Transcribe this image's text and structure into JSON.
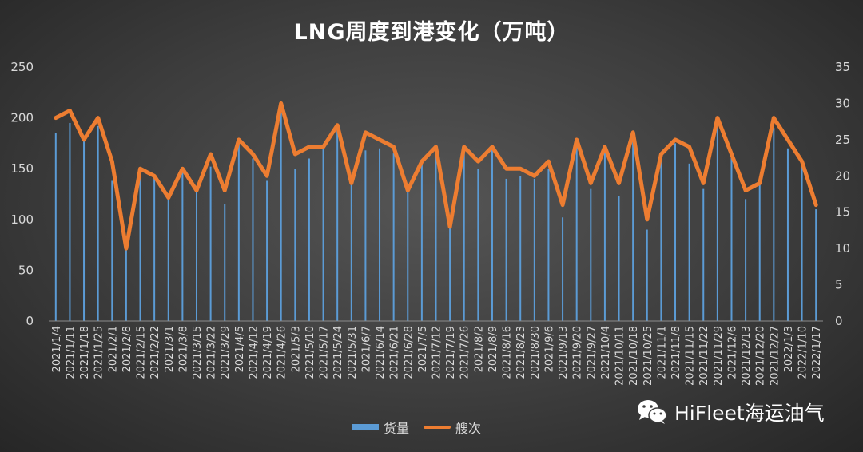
{
  "chart_data": {
    "type": "bar+line",
    "title": "LNG周度到港变化（万吨）",
    "categories": [
      "2021/1/4",
      "2021/1/11",
      "2021/1/18",
      "2021/1/25",
      "2021/2/1",
      "2021/2/8",
      "2021/2/15",
      "2021/2/22",
      "2021/3/1",
      "2021/3/8",
      "2021/3/15",
      "2021/3/22",
      "2021/3/29",
      "2021/4/5",
      "2021/4/12",
      "2021/4/19",
      "2021/4/26",
      "2021/5/3",
      "2021/5/10",
      "2021/5/17",
      "2021/5/24",
      "2021/5/31",
      "2021/6/7",
      "2021/6/14",
      "2021/6/21",
      "2021/6/28",
      "2021/7/5",
      "2021/7/12",
      "2021/7/19",
      "2021/7/26",
      "2021/8/2",
      "2021/8/9",
      "2021/8/16",
      "2021/8/23",
      "2021/8/30",
      "2021/9/6",
      "2021/9/13",
      "2021/9/20",
      "2021/9/27",
      "2021/10/4",
      "2021/10/11",
      "2021/10/18",
      "2021/10/25",
      "2021/11/1",
      "2021/11/8",
      "2021/11/15",
      "2021/11/22",
      "2021/11/29",
      "2021/12/6",
      "2021/12/13",
      "2021/12/20",
      "2021/12/27",
      "2022/1/3",
      "2022/1/10",
      "2022/1/17"
    ],
    "series": [
      {
        "name": "货量",
        "type": "bar",
        "axis": "left",
        "color": "#5b9bd5",
        "values": [
          185,
          195,
          178,
          192,
          138,
          70,
          150,
          144,
          122,
          148,
          127,
          152,
          115,
          175,
          160,
          138,
          205,
          150,
          160,
          170,
          188,
          135,
          168,
          170,
          165,
          130,
          155,
          170,
          93,
          168,
          150,
          170,
          140,
          143,
          140,
          150,
          102,
          175,
          130,
          170,
          123,
          185,
          90,
          160,
          175,
          155,
          130,
          195,
          165,
          120,
          135,
          190,
          170,
          155,
          110
        ]
      },
      {
        "name": "艘次",
        "type": "line",
        "axis": "right",
        "color": "#ed7d31",
        "values": [
          28,
          29,
          25,
          28,
          22,
          10,
          21,
          20,
          17,
          21,
          18,
          23,
          18,
          25,
          23,
          20,
          30,
          23,
          24,
          24,
          27,
          19,
          26,
          25,
          24,
          18,
          22,
          24,
          13,
          24,
          22,
          24,
          21,
          21,
          20,
          22,
          16,
          25,
          19,
          24,
          19,
          26,
          14,
          23,
          25,
          24,
          19,
          28,
          23,
          18,
          19,
          28,
          25,
          22,
          16
        ]
      }
    ],
    "y_left": {
      "min": 0,
      "max": 250,
      "ticks": [
        0,
        50,
        100,
        150,
        200,
        250
      ]
    },
    "y_right": {
      "min": 0,
      "max": 35,
      "ticks": [
        0,
        5,
        10,
        15,
        20,
        25,
        30,
        35
      ]
    },
    "legend_position": "bottom",
    "grid": false
  },
  "legend": {
    "bar_label": "货量",
    "line_label": "艘次"
  },
  "watermark": {
    "text": "HiFleet海运油气",
    "icon": "wechat-icon"
  }
}
